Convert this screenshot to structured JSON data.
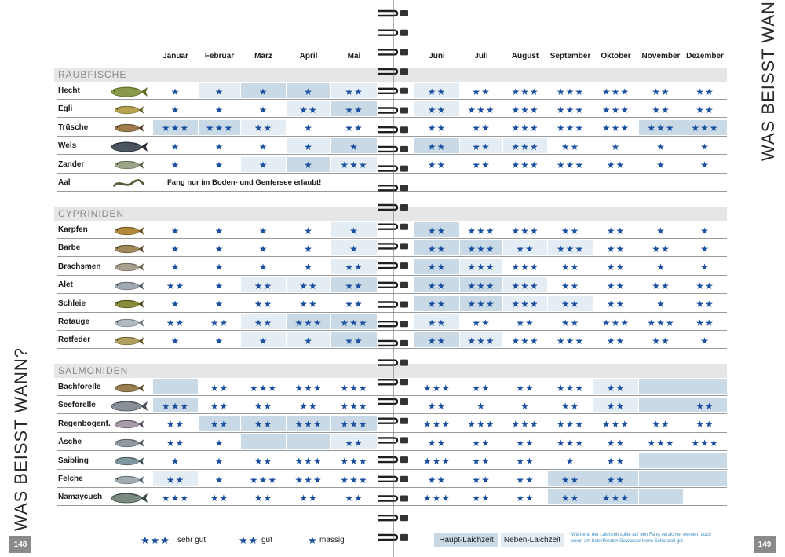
{
  "side_title": "WAS BEISST WANN?",
  "page_left": "148",
  "page_right": "149",
  "months": [
    "Januar",
    "Februar",
    "März",
    "April",
    "Mai",
    "Juni",
    "Juli",
    "August",
    "September",
    "Oktober",
    "November",
    "Dezember"
  ],
  "colors": {
    "haupt": "#c9dae6",
    "neben": "#e3edf3",
    "star": "#1b4fa0",
    "group_bg": "#e6e6e6"
  },
  "groups": [
    {
      "label": "RAUBFISCHE",
      "fish": [
        {
          "name": "Hecht",
          "icon": "pike-icon",
          "ratings": [
            1,
            1,
            1,
            1,
            2,
            2,
            2,
            3,
            3,
            3,
            2,
            2
          ],
          "shade": [
            "",
            "neben",
            "haupt",
            "haupt",
            "neben",
            "neben",
            "",
            "",
            "",
            "",
            "",
            ""
          ]
        },
        {
          "name": "Egli",
          "icon": "perch-icon",
          "ratings": [
            1,
            1,
            1,
            2,
            2,
            2,
            3,
            3,
            3,
            3,
            2,
            2
          ],
          "shade": [
            "",
            "",
            "",
            "neben",
            "haupt",
            "neben",
            "",
            "",
            "",
            "",
            "",
            ""
          ]
        },
        {
          "name": "Trüsche",
          "icon": "burbot-icon",
          "ratings": [
            3,
            3,
            2,
            1,
            2,
            2,
            2,
            3,
            3,
            3,
            3,
            3
          ],
          "shade": [
            "haupt",
            "haupt",
            "neben",
            "",
            "",
            "",
            "",
            "",
            "",
            "",
            "haupt",
            "haupt"
          ]
        },
        {
          "name": "Wels",
          "icon": "catfish-icon",
          "ratings": [
            1,
            1,
            1,
            1,
            1,
            2,
            2,
            3,
            2,
            1,
            1,
            1
          ],
          "shade": [
            "",
            "",
            "",
            "neben",
            "haupt",
            "haupt",
            "neben",
            "neben",
            "",
            "",
            "",
            ""
          ]
        },
        {
          "name": "Zander",
          "icon": "zander-icon",
          "ratings": [
            1,
            1,
            1,
            1,
            3,
            2,
            2,
            3,
            3,
            2,
            1,
            1
          ],
          "shade": [
            "",
            "",
            "neben",
            "haupt",
            "neben",
            "",
            "",
            "",
            "",
            "",
            "",
            ""
          ]
        },
        {
          "name": "Aal",
          "icon": "eel-icon",
          "ratings": [
            0,
            0,
            0,
            0,
            0,
            0,
            0,
            0,
            0,
            0,
            0,
            0
          ],
          "shade": [
            "",
            "",
            "",
            "",
            "",
            "",
            "",
            "",
            "",
            "",
            "",
            ""
          ],
          "note": "Fang nur im Boden- und Genfersee erlaubt!"
        }
      ]
    },
    {
      "label": "CYPRINIDEN",
      "fish": [
        {
          "name": "Karpfen",
          "icon": "carp-icon",
          "ratings": [
            1,
            1,
            1,
            1,
            1,
            2,
            3,
            3,
            2,
            2,
            1,
            1
          ],
          "shade": [
            "",
            "",
            "",
            "",
            "neben",
            "haupt",
            "",
            "",
            "",
            "",
            "",
            ""
          ]
        },
        {
          "name": "Barbe",
          "icon": "barbel-icon",
          "ratings": [
            1,
            1,
            1,
            1,
            1,
            2,
            3,
            2,
            3,
            2,
            2,
            1
          ],
          "shade": [
            "",
            "",
            "",
            "",
            "neben",
            "haupt",
            "haupt",
            "neben",
            "neben",
            "",
            "",
            ""
          ]
        },
        {
          "name": "Brachsmen",
          "icon": "bream-icon",
          "ratings": [
            1,
            1,
            1,
            1,
            2,
            2,
            3,
            3,
            2,
            2,
            1,
            1
          ],
          "shade": [
            "",
            "",
            "",
            "",
            "neben",
            "haupt",
            "neben",
            "",
            "",
            "",
            "",
            ""
          ]
        },
        {
          "name": "Alet",
          "icon": "chub-icon",
          "ratings": [
            2,
            1,
            2,
            2,
            2,
            2,
            3,
            3,
            2,
            2,
            2,
            2
          ],
          "shade": [
            "",
            "",
            "neben",
            "neben",
            "haupt",
            "haupt",
            "haupt",
            "neben",
            "",
            "",
            "",
            ""
          ]
        },
        {
          "name": "Schleie",
          "icon": "tench-icon",
          "ratings": [
            1,
            1,
            2,
            2,
            2,
            2,
            3,
            3,
            2,
            2,
            1,
            2
          ],
          "shade": [
            "",
            "",
            "",
            "",
            "",
            "haupt",
            "haupt",
            "neben",
            "neben",
            "",
            "",
            ""
          ]
        },
        {
          "name": "Rotauge",
          "icon": "roach-icon",
          "ratings": [
            2,
            2,
            2,
            3,
            3,
            2,
            2,
            2,
            2,
            3,
            3,
            2
          ],
          "shade": [
            "",
            "",
            "neben",
            "haupt",
            "haupt",
            "neben",
            "",
            "",
            "",
            "",
            "",
            ""
          ]
        },
        {
          "name": "Rotfeder",
          "icon": "rudd-icon",
          "ratings": [
            1,
            1,
            1,
            1,
            2,
            2,
            3,
            3,
            3,
            2,
            2,
            1
          ],
          "shade": [
            "",
            "",
            "neben",
            "neben",
            "haupt",
            "haupt",
            "neben",
            "",
            "",
            "",
            "",
            ""
          ]
        }
      ]
    },
    {
      "label": "SALMONIDEN",
      "fish": [
        {
          "name": "Bachforelle",
          "icon": "brown-trout-icon",
          "ratings": [
            0,
            2,
            3,
            3,
            3,
            3,
            2,
            2,
            3,
            2,
            0,
            0
          ],
          "shade": [
            "haupt",
            "",
            "",
            "",
            "",
            "",
            "",
            "",
            "",
            "neben",
            "haupt",
            "haupt"
          ]
        },
        {
          "name": "Seeforelle",
          "icon": "lake-trout-icon",
          "ratings": [
            3,
            2,
            2,
            2,
            3,
            2,
            1,
            1,
            2,
            2,
            0,
            2
          ],
          "shade": [
            "haupt",
            "",
            "",
            "",
            "",
            "",
            "",
            "",
            "",
            "neben",
            "haupt",
            "haupt"
          ]
        },
        {
          "name": "Regenbogenf.",
          "icon": "rainbow-trout-icon",
          "ratings": [
            2,
            2,
            2,
            3,
            3,
            3,
            3,
            3,
            3,
            3,
            2,
            2
          ],
          "shade": [
            "",
            "haupt",
            "haupt",
            "haupt",
            "haupt",
            "",
            "",
            "",
            "",
            "",
            "",
            ""
          ]
        },
        {
          "name": "Äsche",
          "icon": "grayling-icon",
          "ratings": [
            2,
            1,
            0,
            0,
            2,
            2,
            2,
            2,
            3,
            2,
            3,
            3
          ],
          "shade": [
            "",
            "",
            "haupt",
            "haupt",
            "neben",
            "",
            "",
            "",
            "",
            "",
            "",
            ""
          ]
        },
        {
          "name": "Saibling",
          "icon": "char-icon",
          "ratings": [
            1,
            1,
            2,
            3,
            3,
            3,
            2,
            2,
            1,
            2,
            0,
            0
          ],
          "shade": [
            "",
            "",
            "",
            "",
            "",
            "",
            "",
            "",
            "",
            "",
            "haupt",
            "haupt"
          ]
        },
        {
          "name": "Felche",
          "icon": "whitefish-icon",
          "ratings": [
            2,
            1,
            3,
            3,
            3,
            2,
            2,
            2,
            2,
            2,
            0,
            0
          ],
          "shade": [
            "neben",
            "",
            "",
            "",
            "",
            "",
            "",
            "",
            "haupt",
            "haupt",
            "haupt",
            "haupt"
          ]
        },
        {
          "name": "Namaycush",
          "icon": "namaycush-icon",
          "ratings": [
            3,
            2,
            2,
            2,
            2,
            3,
            2,
            2,
            2,
            3,
            0,
            0
          ],
          "shade": [
            "",
            "",
            "",
            "",
            "",
            "",
            "",
            "",
            "haupt",
            "haupt",
            "haupt",
            ""
          ]
        }
      ]
    }
  ],
  "legend": {
    "sehr_gut": "sehr gut",
    "gut": "gut",
    "maessig": "mässig",
    "haupt": "Haupt-Laichzeit",
    "neben": "Neben-Laichzeit",
    "note": "Während der Laichzeit sollte auf den Fang verzichtet werden, auch wenn am betreffenden Gewässer keine Schonzeit gilt."
  }
}
